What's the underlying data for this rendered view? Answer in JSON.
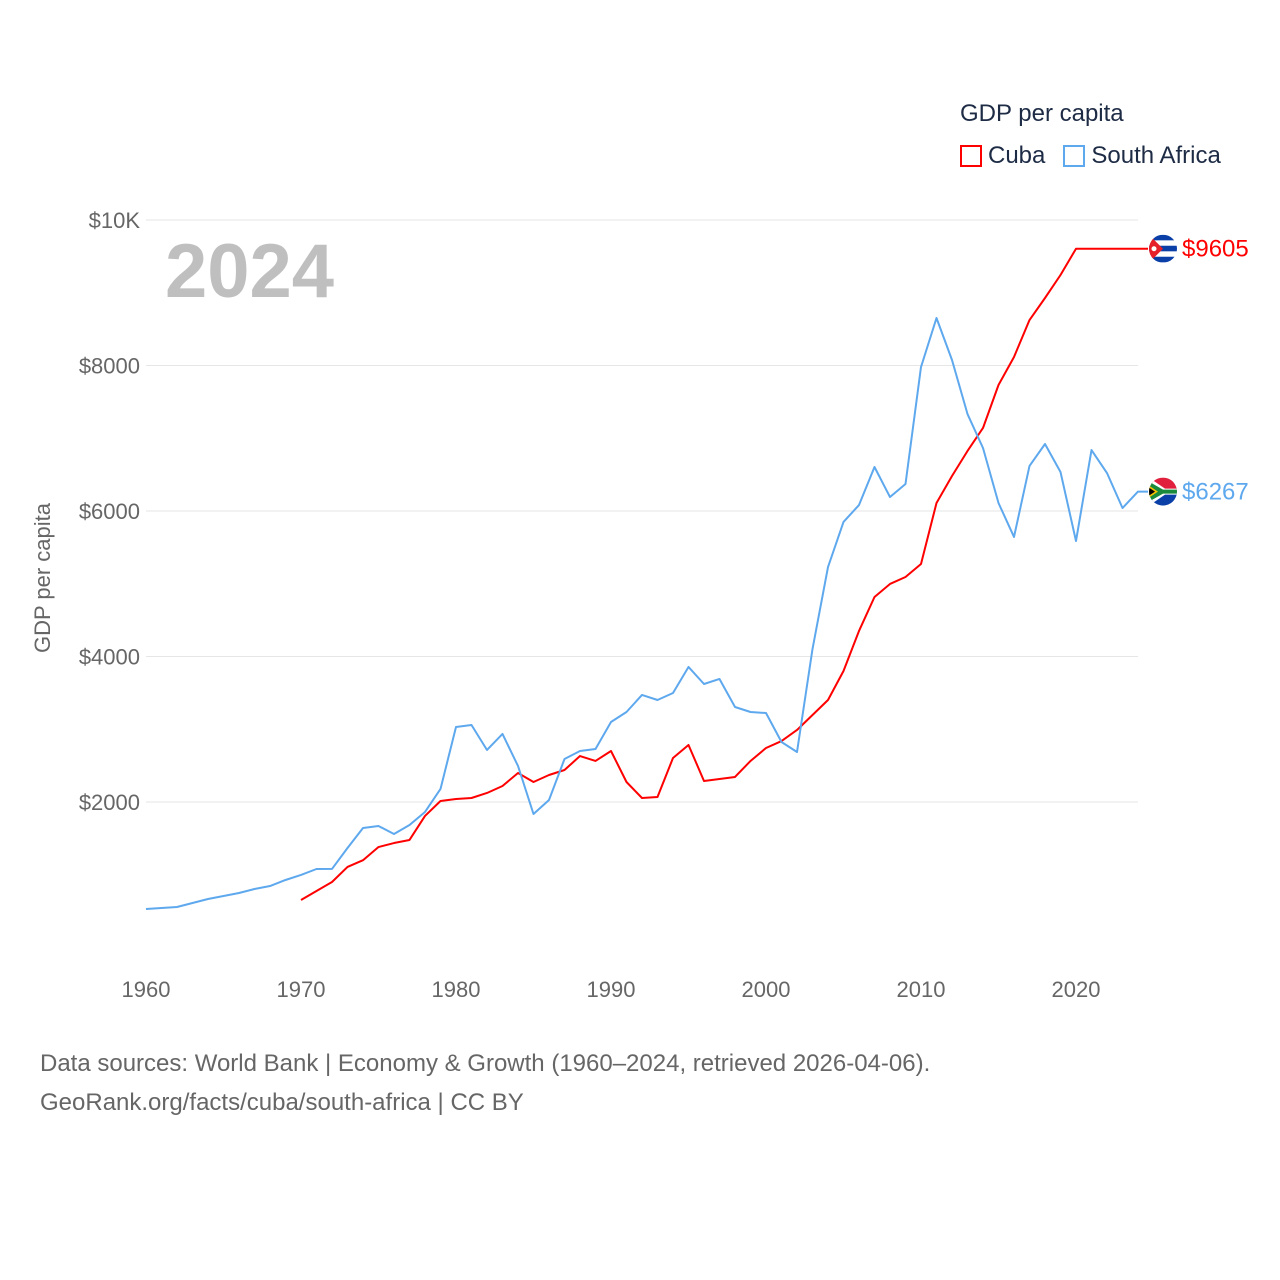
{
  "chart_data": {
    "type": "line",
    "title": "GDP per capita",
    "ylabel": "GDP per capita",
    "xlabel": "",
    "xlim": [
      1960,
      2024
    ],
    "ylim": [
      0,
      10000
    ],
    "x_ticks": [
      "1960",
      "1970",
      "1980",
      "1990",
      "2000",
      "2010",
      "2020"
    ],
    "x_tick_values": [
      1960,
      1970,
      1980,
      1990,
      2000,
      2010,
      2020
    ],
    "y_ticks": [
      "$2000",
      "$4000",
      "$6000",
      "$8000",
      "$10K"
    ],
    "y_tick_values": [
      2000,
      4000,
      6000,
      8000,
      10000
    ],
    "grid": true,
    "legend_placement": "top-right",
    "year_label": "2024",
    "series": [
      {
        "name": "Cuba",
        "color": "#ff0000",
        "end_label": "$9605",
        "end_value": 9605,
        "x": [
          1970,
          1971,
          1972,
          1973,
          1974,
          1975,
          1976,
          1977,
          1978,
          1979,
          1980,
          1981,
          1982,
          1983,
          1984,
          1985,
          1986,
          1987,
          1988,
          1989,
          1990,
          1991,
          1992,
          1993,
          1994,
          1995,
          1996,
          1997,
          1998,
          1999,
          2000,
          2001,
          2002,
          2003,
          2004,
          2005,
          2006,
          2007,
          2008,
          2009,
          2010,
          2011,
          2012,
          2013,
          2014,
          2015,
          2016,
          2017,
          2018,
          2019,
          2020
        ],
        "values": [
          653,
          777,
          900,
          1107,
          1200,
          1381,
          1436,
          1478,
          1808,
          2014,
          2041,
          2055,
          2124,
          2220,
          2399,
          2275,
          2371,
          2440,
          2632,
          2564,
          2701,
          2275,
          2055,
          2069,
          2605,
          2784,
          2289,
          2316,
          2344,
          2564,
          2742,
          2838,
          2990,
          3196,
          3402,
          3801,
          4351,
          4818,
          4997,
          5093,
          5271,
          6110,
          6481,
          6825,
          7141,
          7732,
          8117,
          8625,
          8928,
          9244,
          9605
        ]
      },
      {
        "name": "South Africa",
        "color": "#5ea8ee",
        "end_label": "$6267",
        "end_value": 6267,
        "x": [
          1960,
          1961,
          1962,
          1963,
          1964,
          1965,
          1966,
          1967,
          1968,
          1969,
          1970,
          1971,
          1972,
          1973,
          1974,
          1975,
          1976,
          1977,
          1978,
          1979,
          1980,
          1981,
          1982,
          1983,
          1984,
          1985,
          1986,
          1987,
          1988,
          1989,
          1990,
          1991,
          1992,
          1993,
          1994,
          1995,
          1996,
          1997,
          1998,
          1999,
          2000,
          2001,
          2002,
          2003,
          2004,
          2005,
          2006,
          2007,
          2008,
          2009,
          2010,
          2011,
          2012,
          2013,
          2014,
          2015,
          2016,
          2017,
          2018,
          2019,
          2020,
          2021,
          2022,
          2023,
          2024
        ],
        "values": [
          529,
          543,
          557,
          612,
          667,
          708,
          749,
          804,
          845,
          928,
          997,
          1079,
          1080,
          1368,
          1643,
          1670,
          1560,
          1684,
          1863,
          2179,
          3031,
          3058,
          2715,
          2935,
          2495,
          1835,
          2027,
          2591,
          2701,
          2729,
          3100,
          3237,
          3471,
          3402,
          3498,
          3856,
          3622,
          3691,
          3306,
          3237,
          3223,
          2825,
          2687,
          4103,
          5230,
          5849,
          6082,
          6605,
          6192,
          6371,
          7979,
          8653,
          8076,
          7333,
          6866,
          6110,
          5643,
          6619,
          6921,
          6536,
          5588,
          6838,
          6522,
          6041,
          6267
        ]
      }
    ]
  },
  "footer": {
    "line1": "Data sources: World Bank | Economy & Growth (1960–2024, retrieved 2026-04-06).",
    "line2": "GeoRank.org/facts/cuba/south-africa | CC BY"
  }
}
